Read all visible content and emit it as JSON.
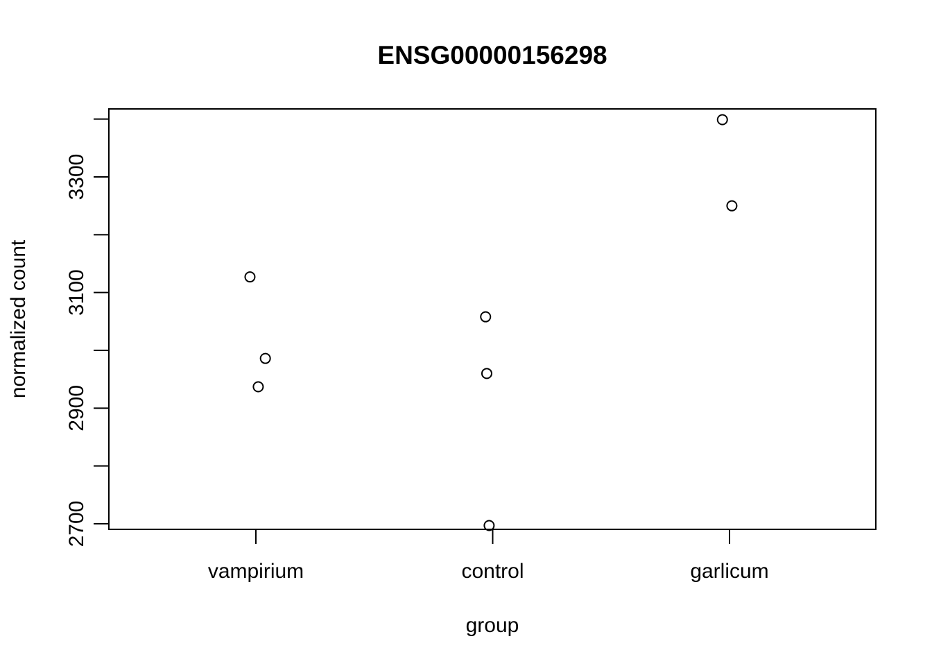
{
  "chart_data": {
    "type": "scatter",
    "title": "ENSG00000156298",
    "xlabel": "group",
    "ylabel": "normalized count",
    "categories": [
      "vampirium",
      "control",
      "garlicum"
    ],
    "y_ticks": [
      2700,
      2800,
      2900,
      3000,
      3100,
      3200,
      3300,
      3400
    ],
    "y_tick_labels": [
      "2700",
      "",
      "2900",
      "",
      "3100",
      "",
      "3300",
      ""
    ],
    "ylim": [
      2690,
      3427
    ],
    "grid": false,
    "legend": "none",
    "points": [
      {
        "group": "vampirium",
        "jitter": -0.025,
        "y": 3127
      },
      {
        "group": "vampirium",
        "jitter": 0.04,
        "y": 2986
      },
      {
        "group": "vampirium",
        "jitter": 0.01,
        "y": 2937
      },
      {
        "group": "control",
        "jitter": -0.03,
        "y": 3058
      },
      {
        "group": "control",
        "jitter": -0.025,
        "y": 2960
      },
      {
        "group": "control",
        "jitter": -0.015,
        "y": 2697
      },
      {
        "group": "garlicum",
        "jitter": -0.03,
        "y": 3399
      },
      {
        "group": "garlicum",
        "jitter": 0.01,
        "y": 3250
      }
    ],
    "marker": "open-circle",
    "marker_color": "#000000"
  }
}
